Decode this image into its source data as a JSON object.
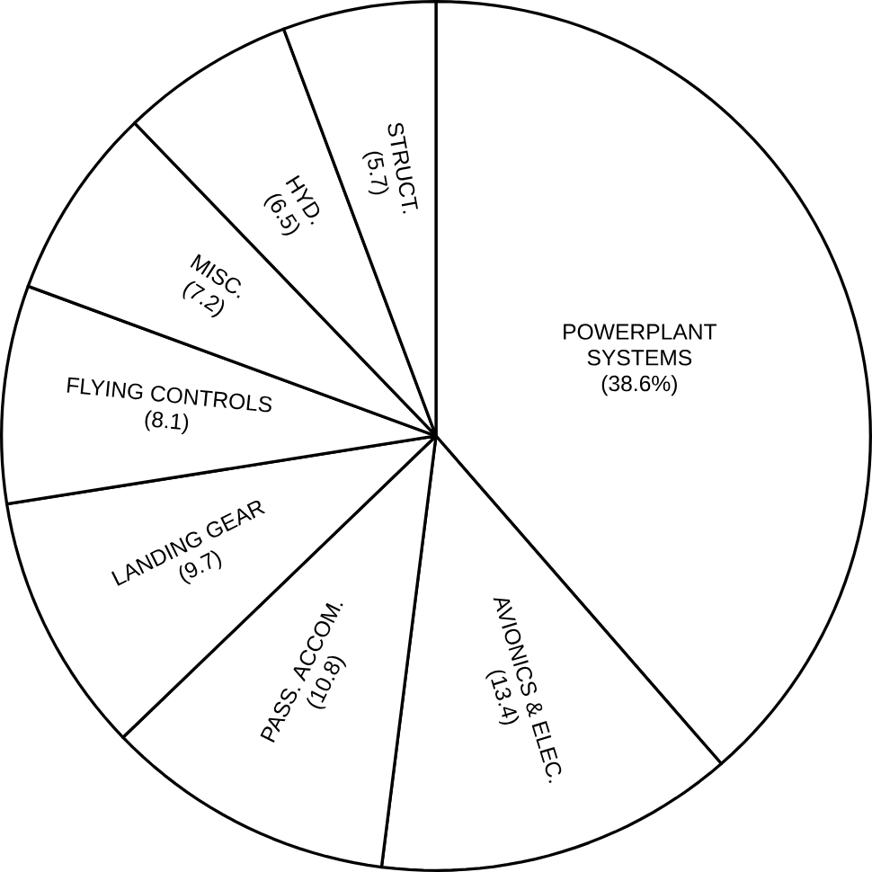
{
  "chart_data": {
    "type": "pie",
    "categories": [
      "POWERPLANT SYSTEMS",
      "AVIONICS & ELEC.",
      "PASS. ACCOM.",
      "LANDING GEAR",
      "FLYING CONTROLS",
      "MISC.",
      "HYD.",
      "STRUCT."
    ],
    "values": [
      38.6,
      13.4,
      10.8,
      9.7,
      8.1,
      7.2,
      6.5,
      5.7
    ],
    "value_labels": [
      "(38.6%)",
      "(13.4)",
      "(10.8)",
      "(9.7)",
      "(8.1)",
      "(7.2)",
      "(6.5)",
      "(5.7)"
    ],
    "colors": [
      "#ffffff",
      "#ffffff",
      "#ffffff",
      "#ffffff",
      "#ffffff",
      "#ffffff",
      "#ffffff",
      "#ffffff"
    ]
  }
}
